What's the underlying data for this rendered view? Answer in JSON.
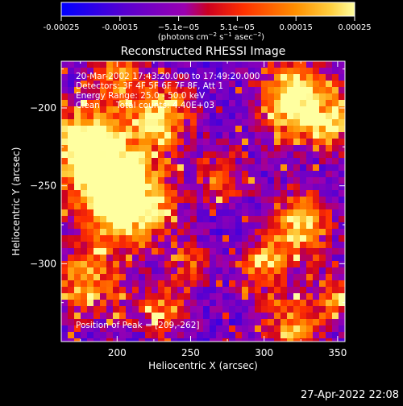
{
  "chart_data": {
    "type": "heatmap",
    "title": "Reconstructed RHESSI Image",
    "xlabel": "Heliocentric X (arcsec)",
    "ylabel": "Heliocentric Y (arcsec)",
    "xlim": [
      162,
      355
    ],
    "ylim": [
      -350,
      -170
    ],
    "x_ticks": [
      200,
      250,
      300,
      350
    ],
    "y_ticks": [
      -200,
      -250,
      -300
    ],
    "colorbar": {
      "range": [
        -0.00025,
        0.00025
      ],
      "ticks": [
        "-0.00025",
        "-0.00015",
        "−5.1e−05",
        "5.1e−05",
        "0.00015",
        "0.00025"
      ],
      "colors": [
        "#0000ff",
        "#7a00c8",
        "#c000a0",
        "#ff2000",
        "#ff8c00",
        "#ffff80"
      ]
    },
    "grid": false,
    "notes": {
      "time_range": "20-Mar-2002 17:43:20.000 to 17:49:20.000",
      "detectors": "Detectors: 3F 4F 5F 6F 7F 8F, Att 1",
      "energy": "Energy Range: 25.0 - 50.0 keV",
      "method": "Clean",
      "counts": "Total counts: 4.40E+03",
      "peak": "Position of Peak = [209,-262]"
    },
    "timestamp": "27-Apr-2022 22:08",
    "peak": [
      209,
      -262
    ]
  },
  "colorbar_units_line1": "(photons cm",
  "colorbar_units_exp1": "−2",
  "colorbar_units_line2": " s",
  "colorbar_units_exp2": "−1",
  "colorbar_units_line3": " asec",
  "colorbar_units_exp3": "−2",
  "colorbar_units_line4": ")"
}
